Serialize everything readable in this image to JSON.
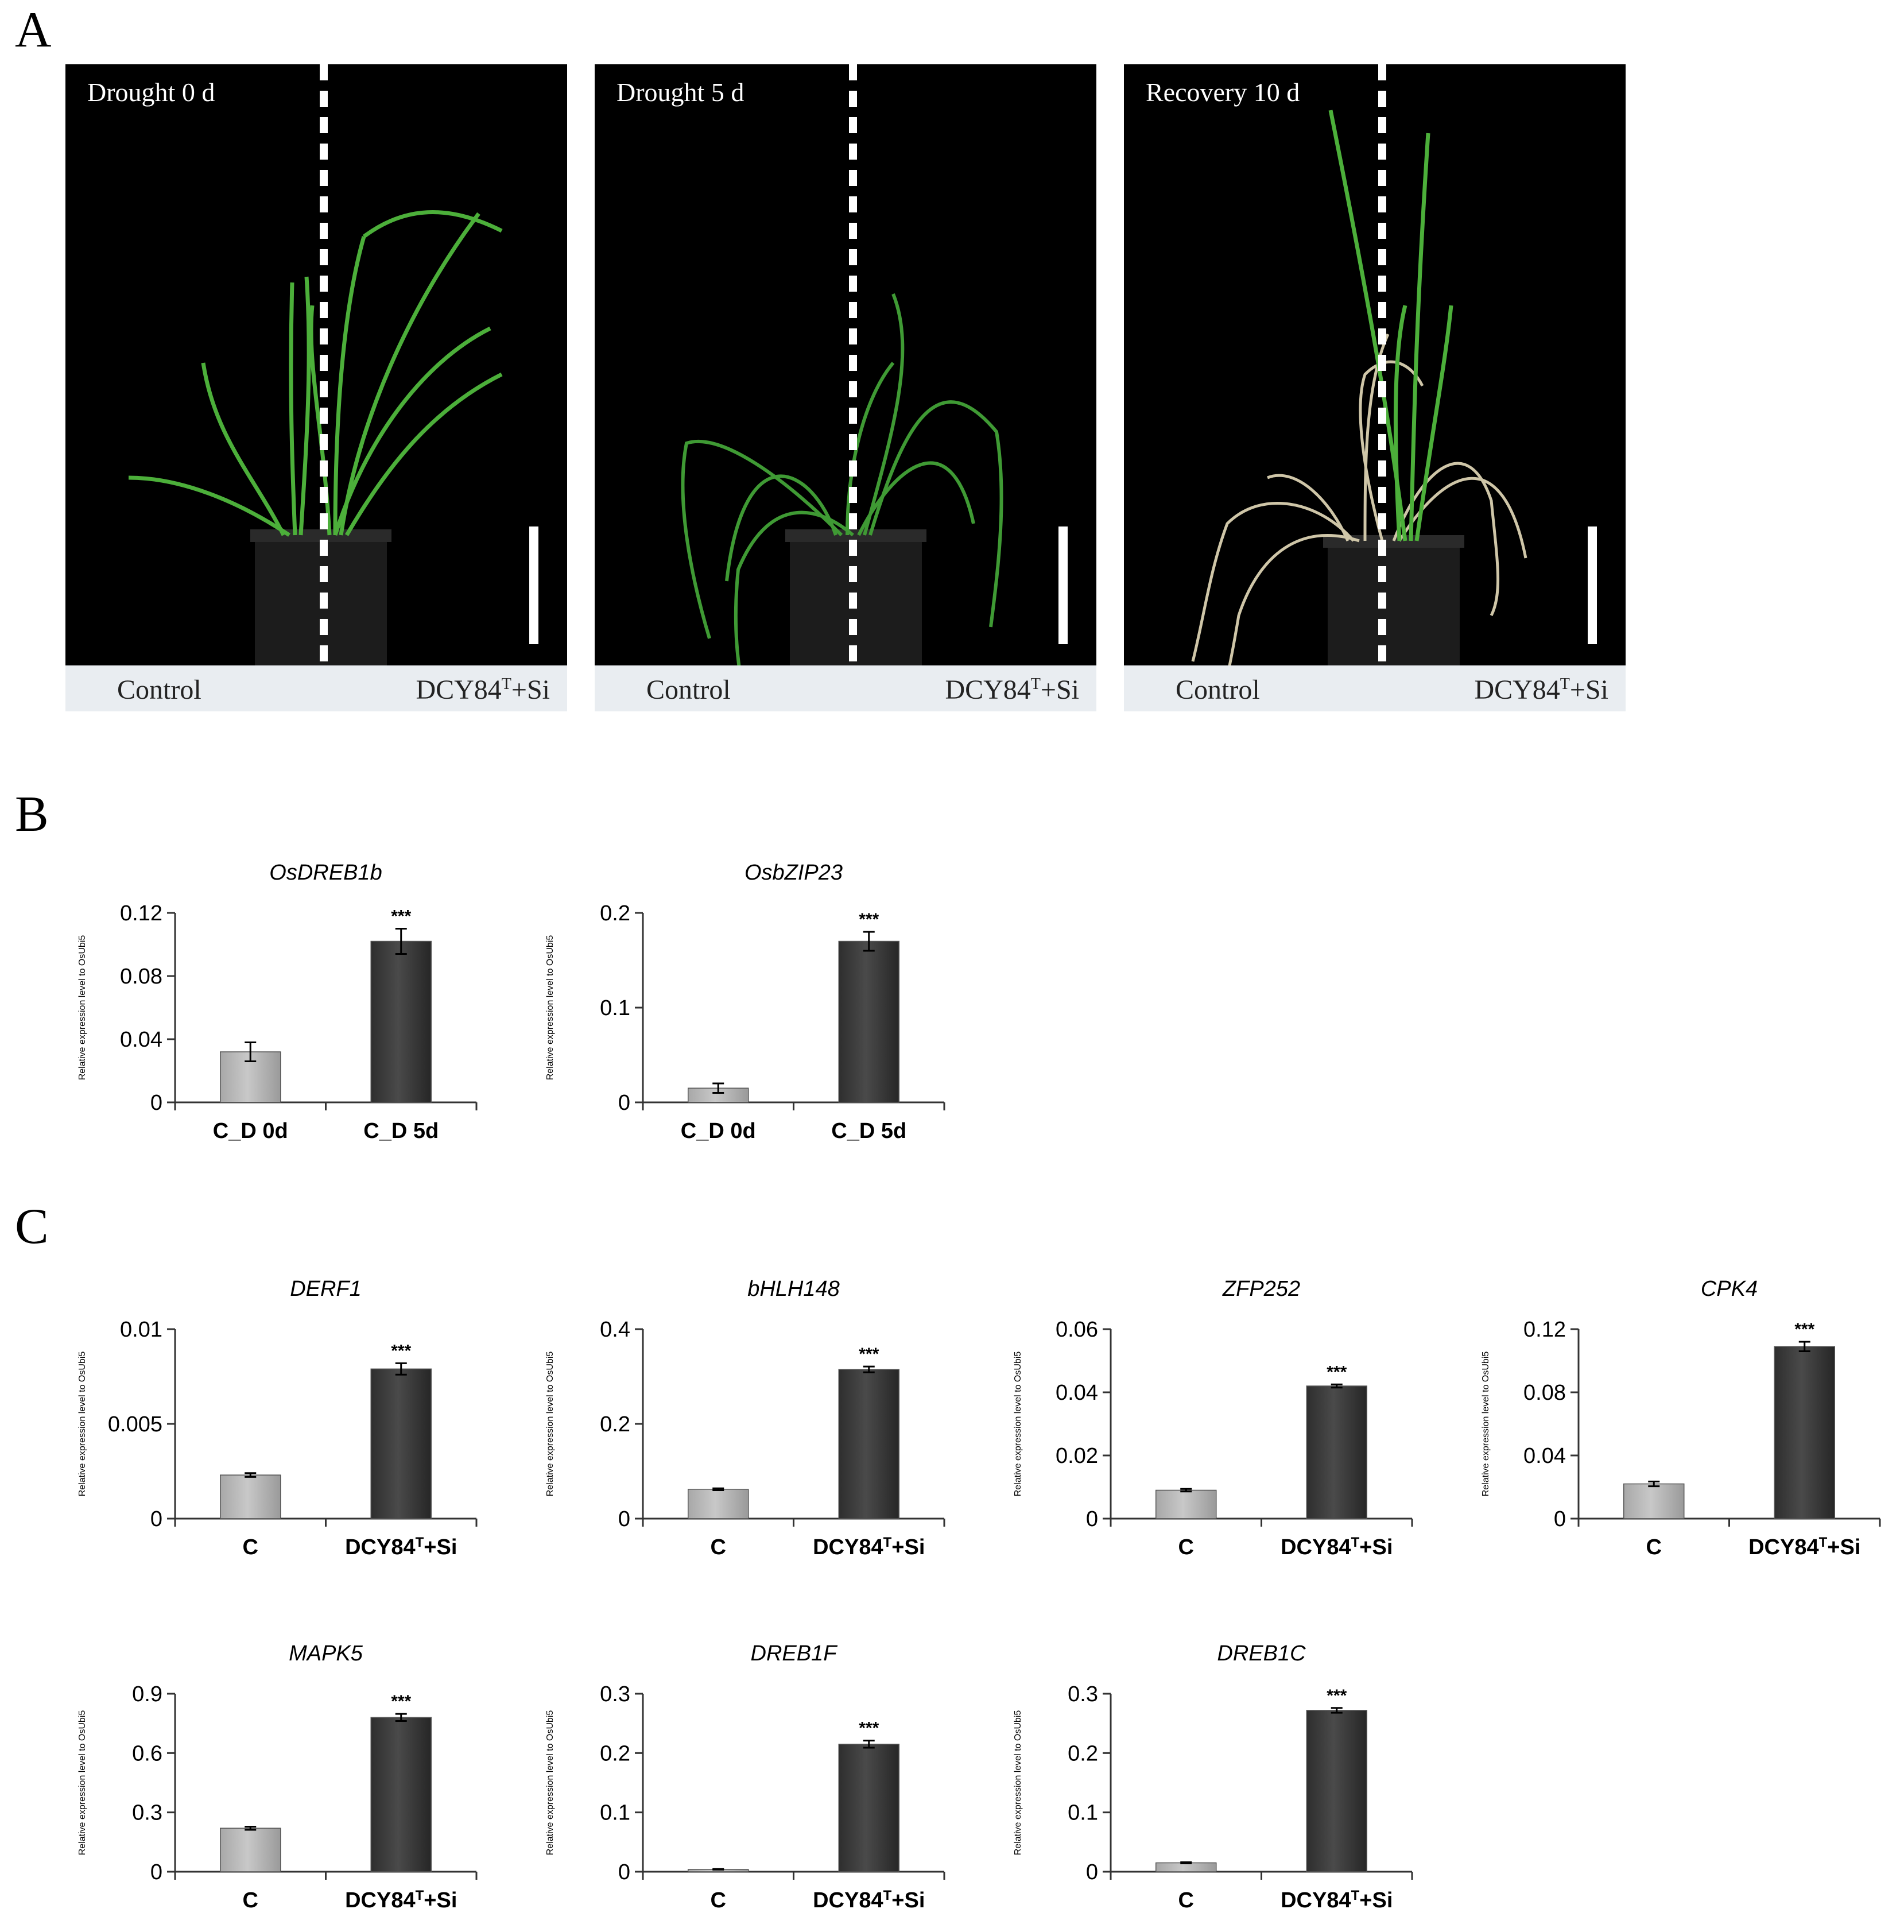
{
  "panels": {
    "a": "A",
    "b": "B",
    "c": "C"
  },
  "photos": [
    {
      "condition": "Drought 0 d",
      "left_label": "Control",
      "right_label": "DCY84",
      "right_sup": "T",
      "right_suffix": "+Si"
    },
    {
      "condition": "Drought 5 d",
      "left_label": "Control",
      "right_label": "DCY84",
      "right_sup": "T",
      "right_suffix": "+Si"
    },
    {
      "condition": "Recovery 10 d",
      "left_label": "Control",
      "right_label": "DCY84",
      "right_sup": "T",
      "right_suffix": "+Si"
    }
  ],
  "colors": {
    "control_bar": "#c8c8c8",
    "treated_bar": "#4a4a4a",
    "leaf_green": "#4caf3a",
    "dry_leaf": "#cfc6a8"
  },
  "chart_data": [
    {
      "type": "bar",
      "title": "OsDREB1b",
      "ylabel": "Relative expression level to OsUbi5",
      "categories": [
        "C_D 0d",
        "C_D 5d"
      ],
      "values": [
        0.032,
        0.102
      ],
      "errors": [
        0.006,
        0.008
      ],
      "significance": [
        "",
        "***"
      ],
      "ylim": [
        0,
        0.12
      ],
      "yticks": [
        "0",
        "0.04",
        "0.08",
        "0.12"
      ]
    },
    {
      "type": "bar",
      "title": "OsbZIP23",
      "ylabel": "Relative expression level to OsUbi5",
      "categories": [
        "C_D 0d",
        "C_D 5d"
      ],
      "values": [
        0.015,
        0.17
      ],
      "errors": [
        0.005,
        0.01
      ],
      "significance": [
        "",
        "***"
      ],
      "ylim": [
        0,
        0.2
      ],
      "yticks": [
        "0",
        "0.1",
        "0.2"
      ]
    },
    {
      "type": "bar",
      "title": "DERF1",
      "ylabel": "Relative expression level to OsUbi5",
      "categories": [
        "C",
        "DCY84T+Si"
      ],
      "values": [
        0.0023,
        0.0079
      ],
      "errors": [
        0.0001,
        0.0003
      ],
      "significance": [
        "",
        "***"
      ],
      "ylim": [
        0,
        0.01
      ],
      "yticks": [
        "0",
        "0.005",
        "0.01"
      ]
    },
    {
      "type": "bar",
      "title": "bHLH148",
      "ylabel": "Relative expression level to OsUbi5",
      "categories": [
        "C",
        "DCY84T+Si"
      ],
      "values": [
        0.062,
        0.315
      ],
      "errors": [
        0.002,
        0.006
      ],
      "significance": [
        "",
        "***"
      ],
      "ylim": [
        0,
        0.4
      ],
      "yticks": [
        "0",
        "0.2",
        "0.4"
      ]
    },
    {
      "type": "bar",
      "title": "ZFP252",
      "ylabel": "Relative expression level to OsUbi5",
      "categories": [
        "C",
        "DCY84T+Si"
      ],
      "values": [
        0.009,
        0.042
      ],
      "errors": [
        0.0004,
        0.0005
      ],
      "significance": [
        "",
        "***"
      ],
      "ylim": [
        0,
        0.06
      ],
      "yticks": [
        "0",
        "0.02",
        "0.04",
        "0.06"
      ]
    },
    {
      "type": "bar",
      "title": "CPK4",
      "ylabel": "Relative expression level to OsUbi5",
      "categories": [
        "C",
        "DCY84T+Si"
      ],
      "values": [
        0.022,
        0.109
      ],
      "errors": [
        0.0015,
        0.003
      ],
      "significance": [
        "",
        "***"
      ],
      "ylim": [
        0,
        0.12
      ],
      "yticks": [
        "0",
        "0.04",
        "0.08",
        "0.12"
      ]
    },
    {
      "type": "bar",
      "title": "MAPK5",
      "ylabel": "Relative expression level to OsUbi5",
      "categories": [
        "C",
        "DCY84T+Si"
      ],
      "values": [
        0.22,
        0.78
      ],
      "errors": [
        0.008,
        0.018
      ],
      "significance": [
        "",
        "***"
      ],
      "ylim": [
        0,
        0.9
      ],
      "yticks": [
        "0",
        "0.3",
        "0.6",
        "0.9"
      ]
    },
    {
      "type": "bar",
      "title": "DREB1F",
      "ylabel": "Relative expression level to OsUbi5",
      "categories": [
        "C",
        "DCY84T+Si"
      ],
      "values": [
        0.004,
        0.215
      ],
      "errors": [
        0.0005,
        0.006
      ],
      "significance": [
        "",
        "***"
      ],
      "ylim": [
        0,
        0.3
      ],
      "yticks": [
        "0",
        "0.1",
        "0.2",
        "0.3"
      ]
    },
    {
      "type": "bar",
      "title": "DREB1C",
      "ylabel": "Relative expression level to OsUbi5",
      "categories": [
        "C",
        "DCY84T+Si"
      ],
      "values": [
        0.015,
        0.272
      ],
      "errors": [
        0.001,
        0.004
      ],
      "significance": [
        "",
        "***"
      ],
      "ylim": [
        0,
        0.3
      ],
      "yticks": [
        "0",
        "0.1",
        "0.2",
        "0.3"
      ]
    }
  ]
}
